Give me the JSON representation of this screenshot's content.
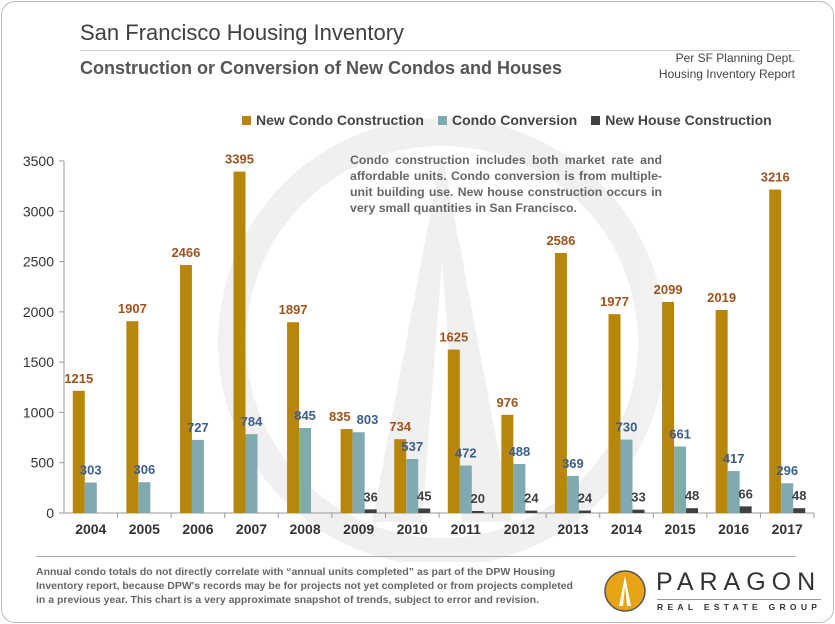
{
  "header": {
    "title": "San Francisco Housing Inventory",
    "subtitle": "Construction or Conversion of New Condos and Houses",
    "source_line1": "Per SF Planning Dept.",
    "source_line2": "Housing Inventory Report"
  },
  "note": "Condo construction includes both market rate and affordable units. Condo conversion is from multiple-unit building use. New house construction occurs in very small quantities in San Francisco.",
  "footnote": "Annual condo totals do not directly correlate with “annual units completed” as part of the DPW Housing Inventory report, because DPW's records may be for projects not yet completed or from projects completed in a previous year. This chart is a very approximate snapshot of trends, subject to error and revision.",
  "logo": {
    "name": "PARAGON",
    "tagline": "REAL ESTATE GROUP",
    "color": "#E8A417"
  },
  "chart_data": {
    "type": "bar",
    "categories": [
      "2004",
      "2005",
      "2006",
      "2007",
      "2008",
      "2009",
      "2010",
      "2011",
      "2012",
      "2013",
      "2014",
      "2015",
      "2016",
      "2017"
    ],
    "series": [
      {
        "name": "New Condo Construction",
        "color": "#B8860B",
        "label_color": "#A0521C",
        "values": [
          1215,
          1907,
          2466,
          3395,
          1897,
          835,
          734,
          1625,
          976,
          2586,
          1977,
          2099,
          2019,
          3216
        ]
      },
      {
        "name": "Condo Conversion",
        "color": "#7FAAB0",
        "label_color": "#3B5E8C",
        "values": [
          303,
          306,
          727,
          784,
          845,
          803,
          537,
          472,
          488,
          369,
          730,
          661,
          417,
          296
        ]
      },
      {
        "name": "New House Construction",
        "color": "#404040",
        "label_color": "#404040",
        "values": [
          null,
          null,
          null,
          null,
          null,
          36,
          45,
          20,
          24,
          24,
          33,
          48,
          66,
          48
        ]
      }
    ],
    "yticks": [
      0,
      500,
      1000,
      1500,
      2000,
      2500,
      3000,
      3500
    ],
    "ylim": [
      0,
      3500
    ],
    "legend": "top",
    "grid": false
  }
}
